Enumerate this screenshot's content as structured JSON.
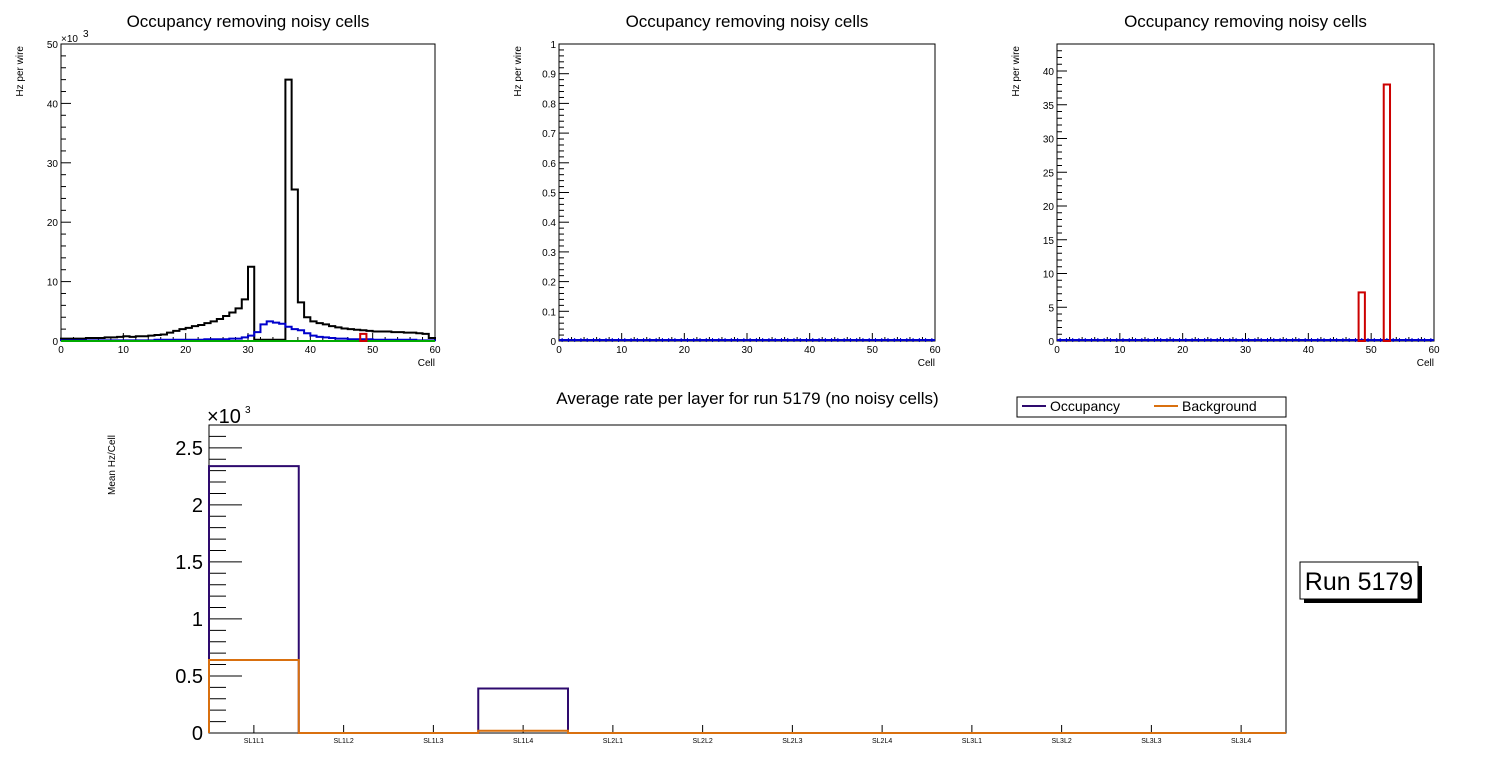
{
  "chart_data": [
    {
      "type": "histogram",
      "title": "Occupancy removing noisy cells",
      "xlabel": "Cell",
      "ylabel": "Hz per wire",
      "xlim": [
        0,
        60
      ],
      "ylim": [
        0,
        50
      ],
      "y_multiplier": "×10³",
      "x_ticks": [
        "0",
        "10",
        "20",
        "30",
        "40",
        "50",
        "60"
      ],
      "y_ticks": [
        "0",
        "10",
        "20",
        "30",
        "40",
        "50"
      ],
      "series": [
        {
          "name": "occupancy",
          "color": "#000000",
          "bins_x": [
            0,
            1,
            2,
            3,
            4,
            5,
            6,
            7,
            8,
            9,
            10,
            11,
            12,
            13,
            14,
            15,
            16,
            17,
            18,
            19,
            20,
            21,
            22,
            23,
            24,
            25,
            26,
            27,
            28,
            29,
            30,
            31,
            32,
            33,
            34,
            35,
            36,
            37,
            38,
            39,
            40,
            41,
            42,
            43,
            44,
            45,
            46,
            47,
            48,
            49,
            50,
            51,
            52,
            53,
            54,
            55,
            56,
            57,
            58,
            59
          ],
          "values": [
            0.4,
            0.4,
            0.4,
            0.4,
            0.5,
            0.5,
            0.5,
            0.6,
            0.6,
            0.7,
            0.8,
            0.7,
            0.8,
            0.8,
            0.9,
            1.0,
            1.1,
            1.4,
            1.7,
            2.0,
            2.2,
            2.5,
            2.7,
            3.0,
            3.3,
            3.7,
            4.2,
            4.8,
            5.5,
            7.0,
            12.5,
            0.2,
            0.2,
            0.2,
            0.2,
            0.2,
            44.0,
            25.5,
            6.5,
            4.0,
            3.3,
            3.0,
            2.8,
            2.5,
            2.3,
            2.1,
            2.0,
            1.9,
            1.8,
            1.7,
            1.6,
            1.6,
            1.6,
            1.5,
            1.5,
            1.4,
            1.4,
            1.3,
            1.2,
            0.5
          ]
        },
        {
          "name": "blue",
          "color": "#0000cc",
          "bins_x": [
            0,
            1,
            2,
            3,
            4,
            5,
            6,
            7,
            8,
            9,
            10,
            11,
            12,
            13,
            14,
            15,
            16,
            17,
            18,
            19,
            20,
            21,
            22,
            23,
            24,
            25,
            26,
            27,
            28,
            29,
            30,
            31,
            32,
            33,
            34,
            35,
            36,
            37,
            38,
            39,
            40,
            41,
            42,
            43,
            44,
            45,
            46,
            47,
            48,
            49,
            50,
            51,
            52,
            53,
            54,
            55,
            56,
            57,
            58,
            59
          ],
          "values": [
            0.1,
            0.1,
            0.1,
            0.1,
            0.1,
            0.1,
            0.1,
            0.1,
            0.1,
            0.1,
            0.1,
            0.1,
            0.1,
            0.1,
            0.1,
            0.2,
            0.2,
            0.2,
            0.2,
            0.2,
            0.2,
            0.2,
            0.2,
            0.3,
            0.3,
            0.3,
            0.3,
            0.4,
            0.4,
            0.6,
            0.9,
            1.5,
            2.8,
            3.3,
            3.1,
            2.9,
            2.4,
            2.0,
            1.8,
            1.3,
            0.9,
            0.7,
            0.6,
            0.5,
            0.4,
            0.4,
            0.3,
            0.3,
            0.3,
            0.3,
            0.2,
            0.2,
            0.2,
            0.2,
            0.2,
            0.2,
            0.2,
            0.1,
            0.1,
            0.1
          ]
        },
        {
          "name": "green",
          "color": "#00aa00",
          "bins_x": [
            0,
            1,
            2,
            3,
            4,
            5,
            6,
            7,
            8,
            9,
            10,
            11,
            12,
            13,
            14,
            15,
            16,
            17,
            18,
            19,
            20,
            21,
            22,
            23,
            24,
            25,
            26,
            27,
            28,
            29,
            30,
            31,
            32,
            33,
            34,
            35,
            36,
            37,
            38,
            39,
            40,
            41,
            42,
            43,
            44,
            45,
            46,
            47,
            48,
            49,
            50,
            51,
            52,
            53,
            54,
            55,
            56,
            57,
            58,
            59
          ],
          "values": [
            0,
            0,
            0,
            0,
            0,
            0,
            0,
            0,
            0,
            0,
            0,
            0,
            0,
            0,
            0,
            0,
            0,
            0,
            0,
            0,
            0,
            0,
            0,
            0,
            0,
            0,
            0,
            0,
            0,
            0,
            0,
            0,
            0,
            0,
            0,
            0,
            0,
            0,
            0,
            0,
            0,
            0,
            0,
            0,
            0,
            0,
            0,
            0,
            0,
            0,
            0,
            0,
            0,
            0,
            0,
            0,
            0,
            0,
            0,
            0
          ]
        },
        {
          "name": "red",
          "color": "#cc0000",
          "bins_x": [
            48
          ],
          "values": [
            1.2
          ]
        }
      ]
    },
    {
      "type": "histogram",
      "title": "Occupancy removing noisy cells",
      "xlabel": "Cell",
      "ylabel": "Hz per wire",
      "xlim": [
        0,
        60
      ],
      "ylim": [
        0,
        1
      ],
      "x_ticks": [
        "0",
        "10",
        "20",
        "30",
        "40",
        "50",
        "60"
      ],
      "y_ticks": [
        "0",
        "0.1",
        "0.2",
        "0.3",
        "0.4",
        "0.5",
        "0.6",
        "0.7",
        "0.8",
        "0.9",
        "1"
      ],
      "series": [
        {
          "name": "occupancy",
          "color": "#0000cc",
          "bins_x": [],
          "values": []
        }
      ]
    },
    {
      "type": "histogram",
      "title": "Occupancy removing noisy cells",
      "xlabel": "Cell",
      "ylabel": "Hz per wire",
      "xlim": [
        0,
        60
      ],
      "ylim": [
        0,
        44
      ],
      "x_ticks": [
        "0",
        "10",
        "20",
        "30",
        "40",
        "50",
        "60"
      ],
      "y_ticks": [
        "0",
        "5",
        "10",
        "15",
        "20",
        "25",
        "30",
        "35",
        "40"
      ],
      "series": [
        {
          "name": "red",
          "color": "#cc0000",
          "bins_x": [
            48,
            52
          ],
          "values": [
            7.2,
            38.0
          ]
        }
      ]
    },
    {
      "type": "histogram",
      "title": "Average rate per layer for run 5179 (no noisy cells)",
      "xlabel": "",
      "ylabel": "Mean Hz/Cell",
      "ylim": [
        0,
        2.7
      ],
      "y_multiplier": "×10³",
      "y_ticks": [
        "0",
        "0.5",
        "1",
        "1.5",
        "2",
        "2.5"
      ],
      "categories": [
        "SL1L1",
        "SL1L2",
        "SL1L3",
        "SL1L4",
        "SL2L1",
        "SL2L2",
        "SL2L3",
        "SL2L4",
        "SL3L1",
        "SL3L2",
        "SL3L3",
        "SL3L4"
      ],
      "legend_position": "top-right",
      "series": [
        {
          "name": "Occupancy",
          "color": "#2e0a6e",
          "values": [
            2.34,
            0,
            0,
            0.39,
            0,
            0,
            0,
            0,
            0,
            0,
            0,
            0
          ]
        },
        {
          "name": "Background",
          "color": "#d9700f",
          "values": [
            0.64,
            0,
            0,
            0.02,
            0,
            0,
            0,
            0,
            0,
            0,
            0,
            0
          ]
        }
      ]
    }
  ],
  "run_label": "Run 5179"
}
